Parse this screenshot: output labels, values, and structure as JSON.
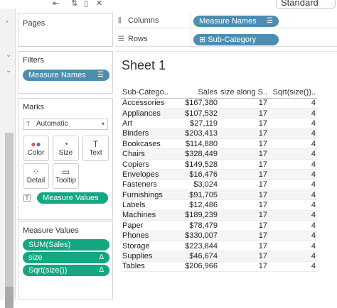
{
  "toolbar": {
    "icons": [
      "undo-add-icon",
      "sort-icon",
      "clear-icon",
      "add-column-icon"
    ],
    "view_mode": "Standard"
  },
  "panels": {
    "pages_title": "Pages",
    "filters_title": "Filters",
    "filter_pill": "Measure Names",
    "marks_title": "Marks",
    "mark_type": "Automatic",
    "mark_cards": [
      {
        "label": "Color",
        "icon": "color-dots-icon"
      },
      {
        "label": "Size",
        "icon": "size-icon"
      },
      {
        "label": "Text",
        "icon": "text-icon"
      },
      {
        "label": "Detail",
        "icon": "detail-icon"
      },
      {
        "label": "Tooltip",
        "icon": "tooltip-icon"
      }
    ],
    "marks_pill": "Measure Values",
    "measure_values_title": "Measure Values",
    "measure_values_pills": [
      {
        "label": "SUM(Sales)",
        "suffix": ""
      },
      {
        "label": "size",
        "suffix": "Δ"
      },
      {
        "label": "Sqrt(size())",
        "suffix": "Δ"
      }
    ]
  },
  "shelves": {
    "columns_label": "Columns",
    "columns_pill": "Measure Names",
    "rows_label": "Rows",
    "rows_pill": "⊞ Sub-Category"
  },
  "sheet": {
    "title": "Sheet 1",
    "headers": [
      "Sub-Catego..",
      "Sales",
      "size along S..",
      "Sqrt(size()).."
    ],
    "rows": [
      [
        "Accessories",
        "$167,380",
        "17",
        "4"
      ],
      [
        "Appliances",
        "$107,532",
        "17",
        "4"
      ],
      [
        "Art",
        "$27,119",
        "17",
        "4"
      ],
      [
        "Binders",
        "$203,413",
        "17",
        "4"
      ],
      [
        "Bookcases",
        "$114,880",
        "17",
        "4"
      ],
      [
        "Chairs",
        "$328,449",
        "17",
        "4"
      ],
      [
        "Copiers",
        "$149,528",
        "17",
        "4"
      ],
      [
        "Envelopes",
        "$16,476",
        "17",
        "4"
      ],
      [
        "Fasteners",
        "$3,024",
        "17",
        "4"
      ],
      [
        "Furnishings",
        "$91,705",
        "17",
        "4"
      ],
      [
        "Labels",
        "$12,486",
        "17",
        "4"
      ],
      [
        "Machines",
        "$189,239",
        "17",
        "4"
      ],
      [
        "Paper",
        "$78,479",
        "17",
        "4"
      ],
      [
        "Phones",
        "$330,007",
        "17",
        "4"
      ],
      [
        "Storage",
        "$223,844",
        "17",
        "4"
      ],
      [
        "Supplies",
        "$46,674",
        "17",
        "4"
      ],
      [
        "Tables",
        "$206,966",
        "17",
        "4"
      ]
    ]
  },
  "colors": {
    "blue_pill": "#4d8eb0",
    "green_pill": "#15a682"
  }
}
